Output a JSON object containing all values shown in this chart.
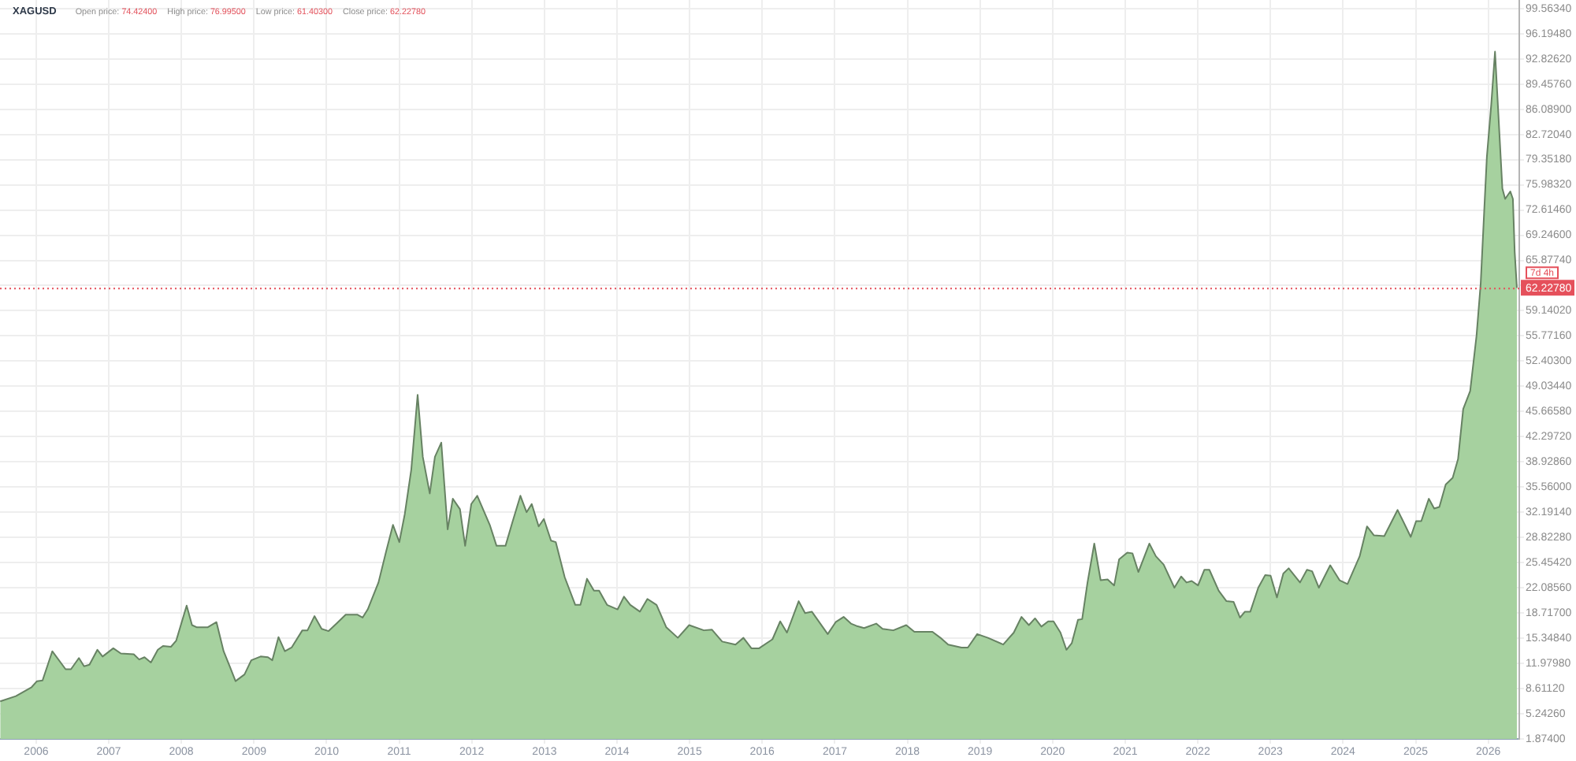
{
  "chart_data": {
    "type": "area",
    "title": "XAGUSD",
    "annotations": [
      "Open price: 74.42400",
      "High price: 76.99500",
      "Low price: 61.40300",
      "Close price: 62.22780",
      "7d 4h"
    ],
    "x": [
      "2005-07-04",
      "2005-09-21",
      "2005-12-09",
      "2006-01-05",
      "2006-02-02",
      "2006-03-23",
      "2006-05-29",
      "2006-06-25",
      "2006-08-04",
      "2006-08-30",
      "2006-09-26",
      "2006-11-05",
      "2006-12-01",
      "2007-01-24",
      "2007-03-03",
      "2007-05-07",
      "2007-06-03",
      "2007-06-30",
      "2007-08-01",
      "2007-09-05",
      "2007-10-01",
      "2007-11-10",
      "2007-12-06",
      "2008-01-28",
      "2008-02-24",
      "2008-03-20",
      "2008-05-12",
      "2008-06-26",
      "2008-08-01",
      "2008-09-02",
      "2008-09-30",
      "2008-11-14",
      "2008-12-18",
      "2009-02-03",
      "2009-03-12",
      "2009-04-03",
      "2009-05-04",
      "2009-06-05",
      "2009-07-09",
      "2009-09-01",
      "2009-09-27",
      "2009-11-01",
      "2009-12-07",
      "2010-01-11",
      "2010-02-20",
      "2010-04-07",
      "2010-06-04",
      "2010-07-01",
      "2010-07-27",
      "2010-09-19",
      "2010-10-28",
      "2010-12-01",
      "2011-01-02",
      "2011-01-29",
      "2011-03-03",
      "2011-04-04",
      "2011-04-30",
      "2011-06-04",
      "2011-06-30",
      "2011-08-01",
      "2011-09-02",
      "2011-09-28",
      "2011-11-03",
      "2011-11-29",
      "2011-12-30",
      "2012-01-29",
      "2012-04-01",
      "2012-05-05",
      "2012-06-19",
      "2012-07-23",
      "2012-09-02",
      "2012-10-03",
      "2012-10-29",
      "2012-12-03",
      "2012-12-29",
      "2013-02-03",
      "2013-02-27",
      "2013-04-13",
      "2013-06-05",
      "2013-07-01",
      "2013-08-03",
      "2013-09-07",
      "2013-10-03",
      "2013-11-12",
      "2014-01-04",
      "2014-02-05",
      "2014-03-09",
      "2014-04-26",
      "2014-06-03",
      "2014-07-19",
      "2014-09-06",
      "2014-11-03",
      "2014-12-30",
      "2015-03-14",
      "2015-04-23",
      "2015-06-14",
      "2015-08-20",
      "2015-09-29",
      "2015-11-08",
      "2015-12-17",
      "2016-02-22",
      "2016-04-01",
      "2016-05-05",
      "2016-07-03",
      "2016-08-04",
      "2016-09-07",
      "2016-11-26",
      "2017-01-05",
      "2017-02-14",
      "2017-03-23",
      "2017-04-19",
      "2017-05-28",
      "2017-07-28",
      "2017-08-29",
      "2017-10-22",
      "2017-12-26",
      "2018-02-05",
      "2018-05-07",
      "2018-06-16",
      "2018-07-25",
      "2018-09-30",
      "2018-11-01",
      "2018-12-18",
      "2019-02-10",
      "2019-04-28",
      "2019-06-20",
      "2019-07-29",
      "2019-09-04",
      "2019-10-05",
      "2019-11-06",
      "2019-12-10",
      "2020-01-06",
      "2020-02-10",
      "2020-03-11",
      "2020-04-07",
      "2020-05-08",
      "2020-05-29",
      "2020-06-25",
      "2020-07-29",
      "2020-08-30",
      "2020-10-04",
      "2020-11-06",
      "2020-12-01",
      "2021-01-11",
      "2021-02-06",
      "2021-03-08",
      "2021-05-02",
      "2021-06-04",
      "2021-07-13",
      "2021-09-05",
      "2021-10-09",
      "2021-11-05",
      "2021-12-01",
      "2022-01-02",
      "2022-02-03",
      "2022-02-28",
      "2022-04-16",
      "2022-05-25",
      "2022-06-30",
      "2022-08-01",
      "2022-08-26",
      "2022-09-22",
      "2022-11-01",
      "2022-12-06",
      "2023-01-02",
      "2023-02-03",
      "2023-03-07",
      "2023-04-03",
      "2023-05-30",
      "2023-07-04",
      "2023-07-30",
      "2023-09-02",
      "2023-10-29",
      "2023-12-15",
      "2024-01-24",
      "2024-03-25",
      "2024-05-01",
      "2024-06-05",
      "2024-07-27",
      "2024-10-02",
      "2024-12-07",
      "2025-01-03",
      "2025-01-29",
      "2025-03-08",
      "2025-04-04",
      "2025-04-30",
      "2025-06-01",
      "2025-07-06",
      "2025-08-02",
      "2025-08-28",
      "2025-10-02",
      "2025-11-03",
      "2025-11-24",
      "2025-12-12",
      "2025-12-25",
      "2026-01-16",
      "2026-02-04",
      "2026-03-13",
      "2026-03-27",
      "2026-04-22",
      "2026-05-05",
      "2026-05-14",
      "2026-05-25"
    ],
    "values": [
      6.9,
      7.6,
      8.8,
      9.6,
      9.7,
      13.6,
      11.2,
      11.2,
      12.7,
      11.6,
      11.8,
      13.8,
      12.9,
      14.0,
      13.3,
      13.2,
      12.5,
      12.8,
      12.1,
      13.8,
      14.3,
      14.2,
      15.0,
      19.7,
      17.1,
      16.8,
      16.8,
      17.5,
      13.6,
      11.5,
      9.6,
      10.5,
      12.4,
      12.9,
      12.8,
      12.4,
      15.5,
      13.6,
      14.1,
      16.4,
      16.4,
      18.3,
      16.6,
      16.3,
      17.3,
      18.5,
      18.5,
      18.1,
      19.2,
      22.8,
      27.0,
      30.5,
      28.2,
      31.9,
      37.9,
      47.9,
      39.6,
      34.7,
      39.6,
      41.5,
      29.9,
      34.0,
      32.6,
      27.7,
      33.3,
      34.4,
      30.5,
      27.7,
      27.7,
      30.8,
      34.4,
      32.2,
      33.3,
      30.3,
      31.3,
      28.4,
      28.2,
      23.5,
      19.8,
      19.8,
      23.3,
      21.7,
      21.7,
      19.8,
      19.2,
      20.9,
      19.8,
      18.9,
      20.6,
      19.8,
      16.8,
      15.4,
      17.1,
      16.4,
      16.5,
      14.9,
      14.5,
      15.4,
      14.0,
      14.0,
      15.2,
      17.6,
      16.1,
      20.3,
      18.7,
      18.9,
      15.9,
      17.5,
      18.2,
      17.3,
      17.0,
      16.7,
      17.3,
      16.6,
      16.4,
      17.1,
      16.2,
      16.2,
      15.4,
      14.5,
      14.1,
      14.1,
      15.9,
      15.4,
      14.5,
      16.1,
      18.2,
      17.1,
      18.0,
      16.9,
      17.6,
      17.6,
      16.1,
      13.8,
      14.7,
      17.8,
      17.9,
      22.8,
      28.0,
      23.1,
      23.2,
      22.4,
      25.9,
      26.8,
      26.7,
      24.2,
      28.0,
      26.3,
      25.2,
      22.1,
      23.6,
      22.8,
      23.0,
      22.4,
      24.5,
      24.5,
      21.7,
      20.3,
      20.2,
      18.1,
      18.9,
      18.9,
      22.1,
      23.8,
      23.7,
      20.8,
      24.0,
      24.7,
      22.8,
      24.5,
      24.3,
      22.1,
      25.1,
      23.1,
      22.6,
      26.3,
      30.3,
      29.1,
      29.0,
      32.5,
      28.9,
      31.0,
      31.0,
      34.0,
      32.7,
      32.9,
      35.9,
      36.8,
      39.3,
      46.0,
      48.4,
      55.8,
      62.8,
      72.7,
      79.7,
      86.7,
      93.8,
      75.5,
      74.1,
      75.1,
      74.1,
      67.0,
      62.2
    ],
    "color": "#a6d19f",
    "xlim": [
      "2005-07-03",
      "2026-06-06"
    ],
    "xticks": [
      "2006",
      "2007",
      "2008",
      "2009",
      "2010",
      "2011",
      "2012",
      "2013",
      "2014",
      "2015",
      "2016",
      "2017",
      "2018",
      "2019",
      "2020",
      "2021",
      "2022",
      "2023",
      "2024",
      "2025",
      "2026"
    ],
    "ylim": [
      1.874,
      100.7
    ],
    "yticks": [
      {
        "value": 1.874,
        "label": "1.87400"
      },
      {
        "value": 5.2426,
        "label": "5.24260"
      },
      {
        "value": 8.6112,
        "label": "8.61120"
      },
      {
        "value": 11.9798,
        "label": "11.97980"
      },
      {
        "value": 15.3484,
        "label": "15.34840"
      },
      {
        "value": 18.717,
        "label": "18.71700"
      },
      {
        "value": 22.0856,
        "label": "22.08560"
      },
      {
        "value": 25.4542,
        "label": "25.45420"
      },
      {
        "value": 28.8228,
        "label": "28.82280"
      },
      {
        "value": 32.1914,
        "label": "32.19140"
      },
      {
        "value": 35.56,
        "label": "35.56000"
      },
      {
        "value": 38.9286,
        "label": "38.92860"
      },
      {
        "value": 42.2972,
        "label": "42.29720"
      },
      {
        "value": 45.6658,
        "label": "45.66580"
      },
      {
        "value": 49.0344,
        "label": "49.03440"
      },
      {
        "value": 52.403,
        "label": "52.40300"
      },
      {
        "value": 55.7716,
        "label": "55.77160"
      },
      {
        "value": 59.1402,
        "label": "59.14020"
      },
      {
        "value": 62.5088,
        "label": null
      },
      {
        "value": 65.8774,
        "label": "65.87740"
      },
      {
        "value": 69.246,
        "label": "69.24600"
      },
      {
        "value": 72.6146,
        "label": "72.61460"
      },
      {
        "value": 75.9832,
        "label": "75.98320"
      },
      {
        "value": 79.3518,
        "label": "79.35180"
      },
      {
        "value": 82.7204,
        "label": "82.72040"
      },
      {
        "value": 86.089,
        "label": "86.08900"
      },
      {
        "value": 89.4576,
        "label": "89.45760"
      },
      {
        "value": 92.8262,
        "label": "92.82620"
      },
      {
        "value": 96.1948,
        "label": "96.19480"
      },
      {
        "value": 99.5634,
        "label": "99.56340"
      }
    ],
    "ref_lines": [
      {
        "axis": "y",
        "value": 62.2278,
        "label": "62.22780",
        "color": "#e5505b",
        "line_style": "dotted"
      }
    ],
    "grid": true,
    "marker": "none"
  }
}
